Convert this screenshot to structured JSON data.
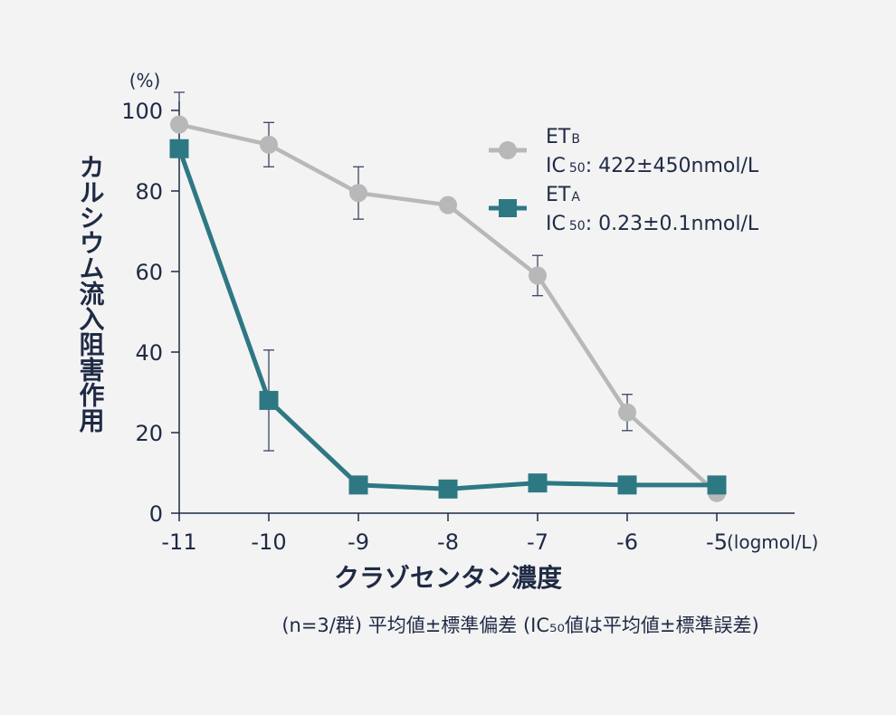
{
  "chart_data": {
    "type": "line",
    "title": "",
    "xlabel": "クラゾセンタン濃度",
    "xunit": "(logmol/L)",
    "ylabel": "カルシウム流入阻害作用",
    "yunit": "(%)",
    "x": [
      -11,
      -10,
      -9,
      -8,
      -7,
      -6,
      -5
    ],
    "xticks": [
      "-11",
      "-10",
      "-9",
      "-8",
      "-7",
      "-6",
      "-5"
    ],
    "yticks": [
      "0",
      "20",
      "40",
      "60",
      "80",
      "100"
    ],
    "ylim": [
      0,
      100
    ],
    "series": [
      {
        "name": "ETB",
        "name_main": "ET",
        "name_sub": "B",
        "ic50_prefix": "IC",
        "ic50_sub": "50",
        "ic50_value": ": 422±450nmol/L",
        "marker": "circle",
        "color": "#b8b8b8",
        "values": [
          96.5,
          91.5,
          79.5,
          76.5,
          59,
          25,
          5
        ],
        "errors": [
          8,
          5.5,
          6.5,
          0,
          5,
          4.5,
          0
        ]
      },
      {
        "name": "ETA",
        "name_main": "ET",
        "name_sub": "A",
        "ic50_prefix": "IC",
        "ic50_sub": "50",
        "ic50_value": ": 0.23±0.1nmol/L",
        "marker": "square",
        "color": "#2e7884",
        "values": [
          90.5,
          28,
          7,
          6,
          7.5,
          7,
          7
        ],
        "errors": [
          0,
          12.5,
          0,
          0,
          0,
          0,
          0
        ]
      }
    ],
    "legend_position": "top-right",
    "grid": false,
    "footnote": "(n=3/群) 平均値±標準偏差 (IC₅₀値は平均値±標準誤差)"
  }
}
